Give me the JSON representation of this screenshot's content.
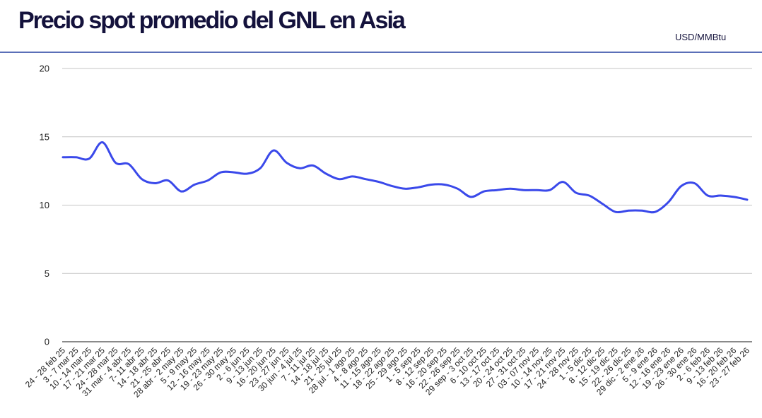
{
  "header": {
    "title": "Precio spot promedio del GNL en Asia",
    "unit": "USD/MMBtu"
  },
  "colors": {
    "line": "#3a49ea",
    "title": "#14123c",
    "header_rule": "#5a6fb8",
    "grid": "#c4c4c4"
  },
  "chart_data": {
    "type": "line",
    "title": "Precio spot promedio del GNL en Asia",
    "ylabel": "USD/MMBtu",
    "xlabel": "",
    "ylim": [
      0,
      20
    ],
    "yticks": [
      0,
      5,
      10,
      15,
      20
    ],
    "grid": true,
    "categories": [
      "24 - 28 feb 25",
      "3 - 7 mar 25",
      "10 - 14 mar 25",
      "17 - 21 mar 25",
      "24 - 28 mar 25",
      "31 mar - 4 abr 25",
      "7- 11 abr 25",
      "14 - 18 abr 25",
      "21 - 25 abr 25",
      "28 abr - 2 may 25",
      "5 - 9 may 25",
      "12 - 16 may 25",
      "19 - 23 may 25",
      "26 - 30 may 25",
      "2 - 6 jun 25",
      "9 - 13 jun 25",
      "16 - 20 jun 25",
      "23 - 27 jun 25",
      "30 jun - 4 jul 25",
      "7 - 11 jul 25",
      "14 - 18 jul 25",
      "21 - 25 jul 25",
      "28 jul - 1 ago 25",
      "4 - 8 ago 25",
      "11 - 15 ago 25",
      "18 - 22 ago 25",
      "25 - 29 ago 25",
      "1 - 5 sep 25",
      "8 - 12 sep 25",
      "16 - 20 sep 25",
      "22 - 26 sep 25",
      "29 sep - 3 oct 25",
      "6 - 10 oct 25",
      "13 - 17 oct 25",
      "20 - 24 oct 25",
      "27 - 31 oct 25",
      "03 - 07 nov 25",
      "10 - 14 nov 25",
      "17 - 21 nov 25",
      "24 - 28 nov 25",
      "1 - 5 dic 25",
      "8 - 12 dic 25",
      "15 - 19 dic 25",
      "22 - 26 dic 25",
      "29 dic - 2 ene 26",
      "5 - 9 ene 26",
      "12 - 16 ene 26",
      "19 - 23 ene 26",
      "26 - 30 ene 26",
      "2 - 6 feb 26",
      "9 - 13 feb 26",
      "16 - 20 feb 26",
      "23 - 27 feb 26"
    ],
    "series": [
      {
        "name": "",
        "values": [
          13.5,
          13.5,
          13.4,
          14.6,
          13.1,
          13.0,
          11.9,
          11.6,
          11.8,
          11.0,
          11.5,
          11.8,
          12.4,
          12.4,
          12.3,
          12.7,
          14.0,
          13.1,
          12.7,
          12.9,
          12.3,
          11.9,
          12.1,
          11.9,
          11.7,
          11.4,
          11.2,
          11.3,
          11.5,
          11.5,
          11.2,
          10.6,
          11.0,
          11.1,
          11.2,
          11.1,
          11.1,
          11.1,
          11.7,
          10.9,
          10.7,
          10.1,
          9.5,
          9.6,
          9.6,
          9.5,
          10.2,
          11.4,
          11.6,
          10.7,
          10.7,
          10.6,
          10.4
        ]
      }
    ]
  }
}
